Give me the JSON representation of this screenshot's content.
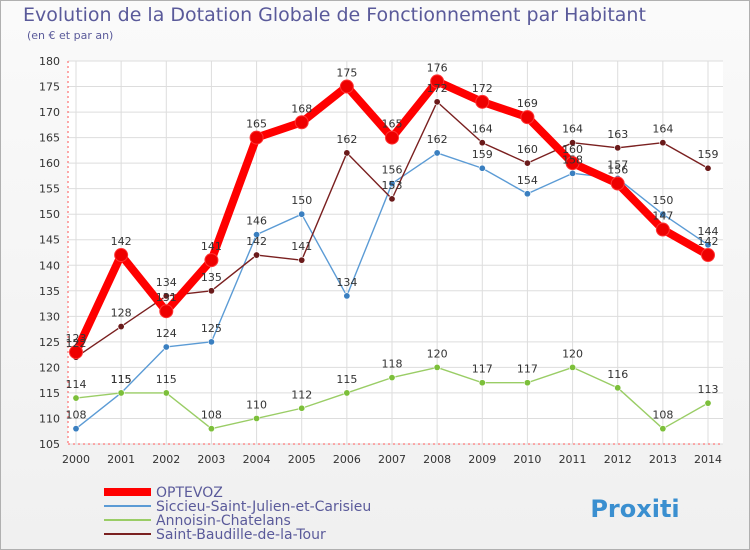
{
  "title": "Evolution de la Dotation Globale de Fonctionnement par Habitant",
  "subtitle": "(en € et par an)",
  "brand": "Proxiti",
  "chart_data": {
    "type": "line",
    "title": "Evolution de la Dotation Globale de Fonctionnement par Habitant",
    "ylabel": "(en € et par an)",
    "xlabel": "",
    "ylim": [
      105,
      180
    ],
    "yticks": [
      105,
      110,
      115,
      120,
      125,
      130,
      135,
      140,
      145,
      150,
      155,
      160,
      165,
      170,
      175,
      180
    ],
    "categories": [
      "2000",
      "2001",
      "2002",
      "2003",
      "2004",
      "2005",
      "2006",
      "2007",
      "2008",
      "2009",
      "2010",
      "2011",
      "2012",
      "2013",
      "2014"
    ],
    "grid": true,
    "legend": "bottom-left",
    "series": [
      {
        "name": "OPTEVOZ",
        "color": "#ff0000",
        "values": [
          123,
          142,
          131,
          141,
          165,
          168,
          175,
          165,
          176,
          172,
          169,
          160,
          156,
          147,
          142
        ]
      },
      {
        "name": "Siccieu-Saint-Julien-et-Carisieu",
        "color": "#5b9bd5",
        "values": [
          108,
          115,
          124,
          125,
          146,
          150,
          134,
          156,
          162,
          159,
          154,
          158,
          157,
          150,
          144
        ]
      },
      {
        "name": "Annoisin-Chatelans",
        "color": "#9acd66",
        "values": [
          114,
          115,
          115,
          108,
          110,
          112,
          115,
          118,
          120,
          117,
          117,
          120,
          116,
          108,
          113
        ]
      },
      {
        "name": "Saint-Baudille-de-la-Tour",
        "color": "#7a2020",
        "values": [
          122,
          128,
          134,
          135,
          142,
          141,
          162,
          153,
          172,
          164,
          160,
          164,
          163,
          164,
          159
        ]
      }
    ]
  }
}
